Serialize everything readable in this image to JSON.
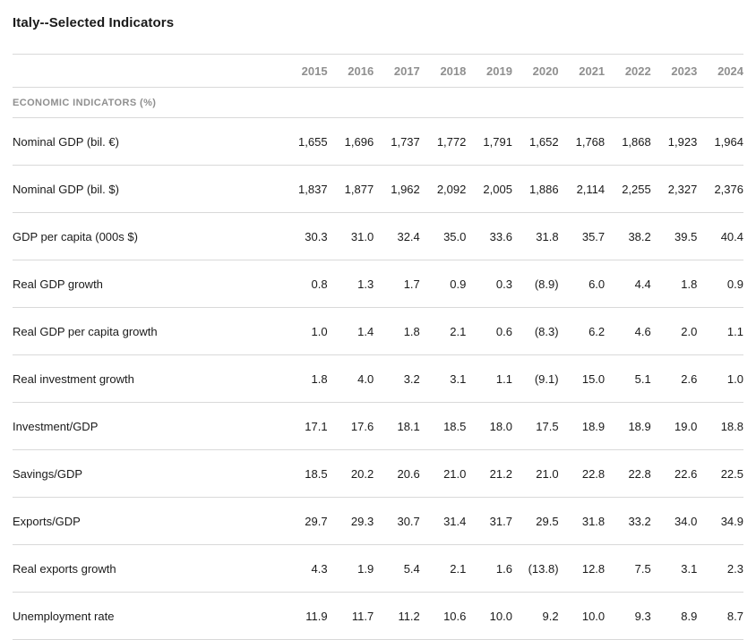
{
  "chart_data": {
    "type": "table",
    "title": "Italy--Selected Indicators",
    "section_header": "ECONOMIC INDICATORS (%)",
    "columns": [
      "2015",
      "2016",
      "2017",
      "2018",
      "2019",
      "2020",
      "2021",
      "2022",
      "2023",
      "2024"
    ],
    "rows": [
      {
        "label": "Nominal GDP (bil. €)",
        "values": [
          "1,655",
          "1,696",
          "1,737",
          "1,772",
          "1,791",
          "1,652",
          "1,768",
          "1,868",
          "1,923",
          "1,964"
        ]
      },
      {
        "label": "Nominal GDP (bil. $)",
        "values": [
          "1,837",
          "1,877",
          "1,962",
          "2,092",
          "2,005",
          "1,886",
          "2,114",
          "2,255",
          "2,327",
          "2,376"
        ]
      },
      {
        "label": "GDP per capita (000s $)",
        "values": [
          "30.3",
          "31.0",
          "32.4",
          "35.0",
          "33.6",
          "31.8",
          "35.7",
          "38.2",
          "39.5",
          "40.4"
        ]
      },
      {
        "label": "Real GDP growth",
        "values": [
          "0.8",
          "1.3",
          "1.7",
          "0.9",
          "0.3",
          "(8.9)",
          "6.0",
          "4.4",
          "1.8",
          "0.9"
        ]
      },
      {
        "label": "Real GDP per capita growth",
        "values": [
          "1.0",
          "1.4",
          "1.8",
          "2.1",
          "0.6",
          "(8.3)",
          "6.2",
          "4.6",
          "2.0",
          "1.1"
        ]
      },
      {
        "label": "Real investment growth",
        "values": [
          "1.8",
          "4.0",
          "3.2",
          "3.1",
          "1.1",
          "(9.1)",
          "15.0",
          "5.1",
          "2.6",
          "1.0"
        ]
      },
      {
        "label": "Investment/GDP",
        "values": [
          "17.1",
          "17.6",
          "18.1",
          "18.5",
          "18.0",
          "17.5",
          "18.9",
          "18.9",
          "19.0",
          "18.8"
        ]
      },
      {
        "label": "Savings/GDP",
        "values": [
          "18.5",
          "20.2",
          "20.6",
          "21.0",
          "21.2",
          "21.0",
          "22.8",
          "22.8",
          "22.6",
          "22.5"
        ]
      },
      {
        "label": "Exports/GDP",
        "values": [
          "29.7",
          "29.3",
          "30.7",
          "31.4",
          "31.7",
          "29.5",
          "31.8",
          "33.2",
          "34.0",
          "34.9"
        ]
      },
      {
        "label": "Real exports growth",
        "values": [
          "4.3",
          "1.9",
          "5.4",
          "2.1",
          "1.6",
          "(13.8)",
          "12.8",
          "7.5",
          "3.1",
          "2.3"
        ]
      },
      {
        "label": "Unemployment rate",
        "values": [
          "11.9",
          "11.7",
          "11.2",
          "10.6",
          "10.0",
          "9.2",
          "10.0",
          "9.3",
          "8.9",
          "8.7"
        ]
      }
    ]
  }
}
